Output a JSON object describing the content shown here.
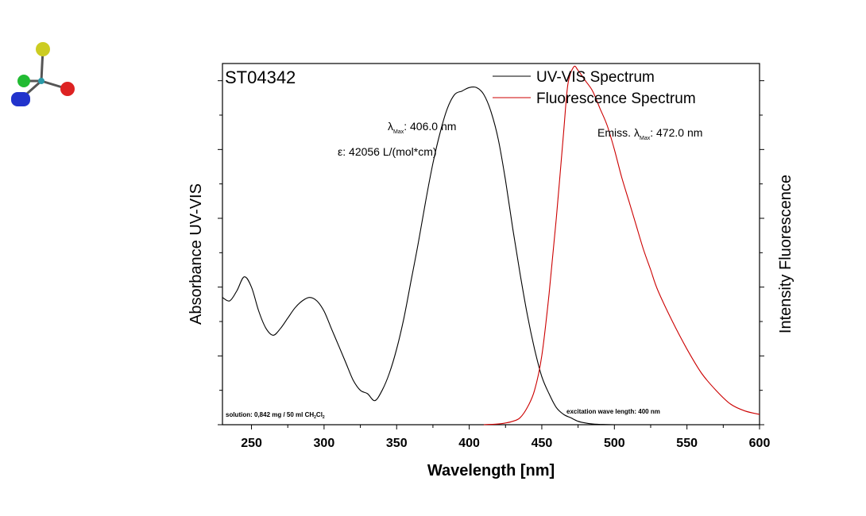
{
  "chart_data": {
    "type": "line",
    "title": "ST04342",
    "xlabel": "Wavelength [nm]",
    "ylabel_left": "Absorbance UV-VIS",
    "ylabel_right": "Intensity Fluorescence",
    "xlim": [
      230,
      600
    ],
    "ylim": [
      0,
      1.05
    ],
    "xticks": [
      250,
      300,
      350,
      400,
      450,
      500,
      550,
      600
    ],
    "grid": false,
    "legend_position": "top-right",
    "series": [
      {
        "name": "UV-VIS Spectrum",
        "color": "#000000",
        "x": [
          230,
          235,
          240,
          245,
          250,
          255,
          260,
          265,
          270,
          275,
          280,
          285,
          290,
          295,
          300,
          305,
          310,
          315,
          320,
          325,
          330,
          335,
          340,
          345,
          350,
          355,
          360,
          365,
          370,
          375,
          380,
          385,
          390,
          395,
          400,
          405,
          410,
          415,
          420,
          425,
          430,
          435,
          440,
          445,
          450,
          455,
          460,
          465,
          470,
          475,
          480,
          485,
          490,
          500
        ],
        "y": [
          0.37,
          0.36,
          0.39,
          0.43,
          0.4,
          0.33,
          0.28,
          0.26,
          0.28,
          0.31,
          0.34,
          0.36,
          0.37,
          0.36,
          0.33,
          0.28,
          0.23,
          0.18,
          0.13,
          0.1,
          0.09,
          0.07,
          0.1,
          0.15,
          0.22,
          0.31,
          0.42,
          0.53,
          0.65,
          0.76,
          0.85,
          0.92,
          0.96,
          0.97,
          0.98,
          0.98,
          0.96,
          0.91,
          0.83,
          0.71,
          0.57,
          0.44,
          0.32,
          0.22,
          0.14,
          0.09,
          0.05,
          0.03,
          0.02,
          0.01,
          0.005,
          0.002,
          0.001,
          0.0
        ]
      },
      {
        "name": "Fluorescence Spectrum",
        "color": "#cc0000",
        "x": [
          410,
          420,
          425,
          430,
          435,
          440,
          445,
          450,
          455,
          460,
          465,
          468,
          472,
          475,
          480,
          485,
          490,
          495,
          500,
          505,
          510,
          515,
          520,
          525,
          530,
          540,
          550,
          560,
          570,
          580,
          590,
          600
        ],
        "y": [
          0.0,
          0.002,
          0.005,
          0.01,
          0.02,
          0.05,
          0.1,
          0.2,
          0.38,
          0.6,
          0.85,
          0.99,
          1.04,
          1.03,
          1.0,
          0.97,
          0.92,
          0.87,
          0.8,
          0.72,
          0.65,
          0.58,
          0.51,
          0.45,
          0.39,
          0.3,
          0.22,
          0.15,
          0.1,
          0.06,
          0.04,
          0.03
        ]
      }
    ],
    "annotations": {
      "lambda_symbol": "λ",
      "max_sub": "Max",
      "uv_max_value": ": 406.0 nm",
      "epsilon_symbol": "ε",
      "epsilon_text": ": 42056 L/(mol*cm)",
      "emiss_prefix": "Emiss.",
      "emiss_value": ": 472.0 nm",
      "solution_prefix": "solution: 0,842 mg / 50 ml CH",
      "sub_2a": "2",
      "solution_cl": "Cl",
      "sub_2b": "2",
      "excitation_text": "excitation wave length: 400 nm"
    }
  },
  "logo": {
    "colors": [
      "#cccc22",
      "#22bb33",
      "#dd2222",
      "#2233cc",
      "#2a9aa8"
    ]
  }
}
